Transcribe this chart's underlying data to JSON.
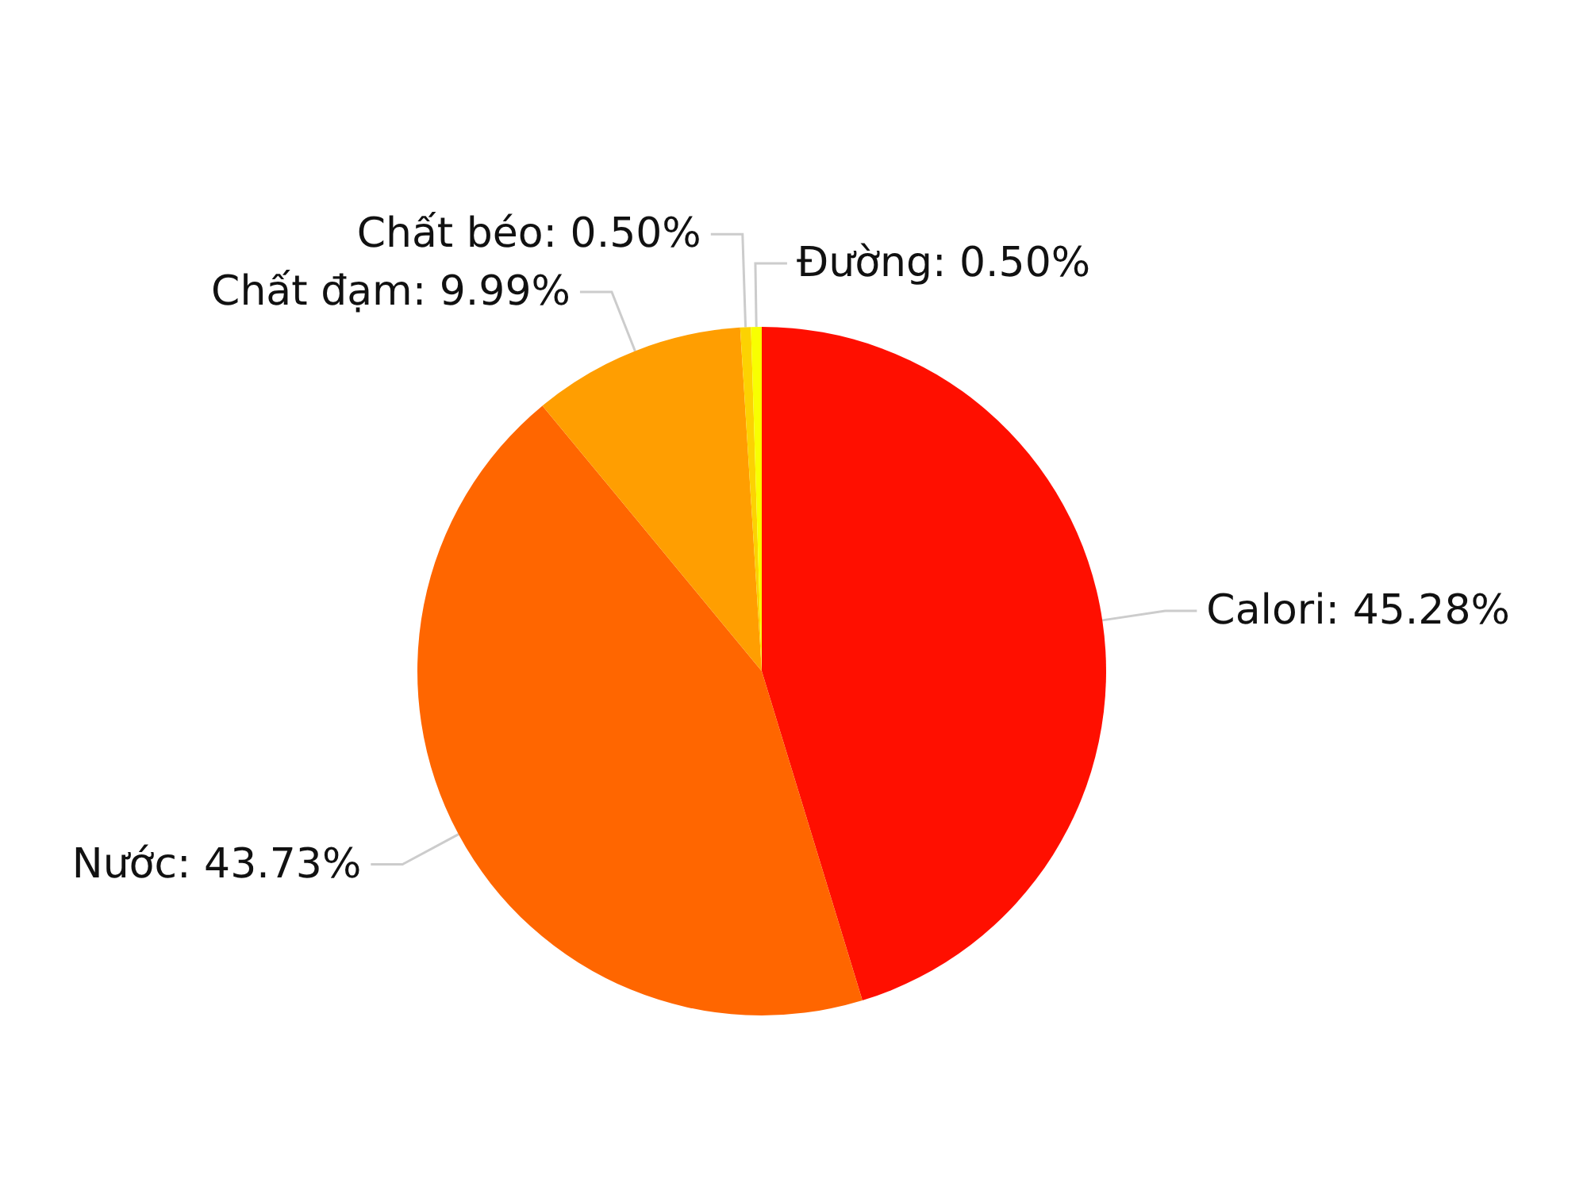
{
  "chart_data": {
    "type": "pie",
    "categories": [
      "Calori",
      "Nước",
      "Chất đạm",
      "Chất béo",
      "Đường"
    ],
    "values": [
      45.28,
      43.73,
      9.99,
      0.5,
      0.5
    ],
    "value_labels": [
      "45.28%",
      "43.73%",
      "9.99%",
      "0.50%",
      "0.50%"
    ],
    "colors": [
      "#ff0f00",
      "#ff6600",
      "#ff9e01",
      "#fcd202",
      "#f8ff01"
    ],
    "legend": false
  }
}
